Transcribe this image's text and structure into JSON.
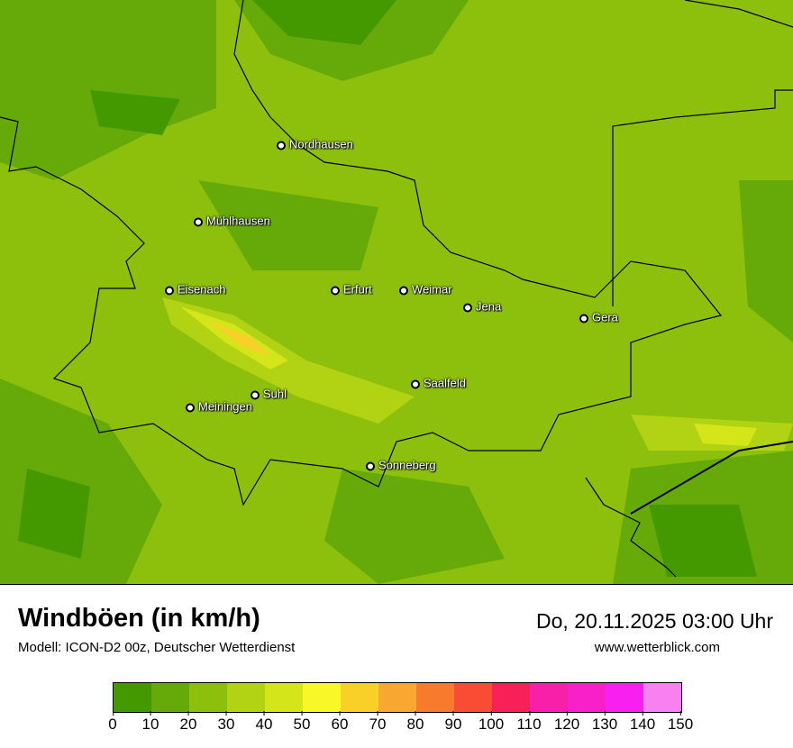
{
  "title": "Windböen (in km/h)",
  "model": "Modell: ICON-D2 00z, Deutscher Wetterdienst",
  "datetime": "Do, 20.11.2025 03:00 Uhr",
  "website": "www.wetterblick.com",
  "cities": [
    "Nordhausen",
    "Mühlhausen",
    "Eisenach",
    "Erfurt",
    "Weimar",
    "Jena",
    "Gera",
    "Saalfeld",
    "Suhl",
    "Meiningen",
    "Sonneberg"
  ],
  "legend": {
    "ticks": [
      "0",
      "10",
      "20",
      "30",
      "40",
      "50",
      "60",
      "70",
      "80",
      "90",
      "100",
      "110",
      "120",
      "130",
      "140",
      "150"
    ],
    "colors": [
      "#449900",
      "#66aa0a",
      "#8cc00c",
      "#b2d214",
      "#d4e61a",
      "#f8f828",
      "#f8d028",
      "#f8a830",
      "#f87a2c",
      "#f84c34",
      "#f82058",
      "#f820a8",
      "#f820c8",
      "#f820f0",
      "#f880f0"
    ]
  }
}
